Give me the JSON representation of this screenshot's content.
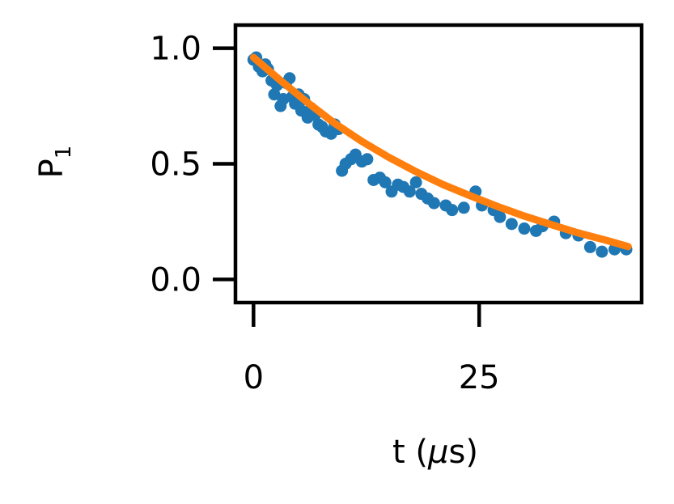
{
  "chart_data": {
    "type": "scatter",
    "xlabel_prefix": "t (",
    "xlabel_mu": "μ",
    "xlabel_suffix": "s)",
    "ylabel_main": "P",
    "ylabel_sub": "1",
    "xlim": [
      -2,
      43
    ],
    "ylim": [
      -0.1,
      1.1
    ],
    "xticks": [
      0,
      25
    ],
    "xtick_labels": [
      "0",
      "25"
    ],
    "yticks": [
      0.0,
      0.5,
      1.0
    ],
    "ytick_labels": [
      "0.0",
      "0.5",
      "1.0"
    ],
    "grid": false,
    "colors": {
      "data": "#1f77b4",
      "fit": "#ff7f0e"
    },
    "series": [
      {
        "kind": "points",
        "x": [
          0.0,
          0.3,
          0.6,
          1.0,
          1.3,
          1.6,
          2.0,
          2.3,
          2.6,
          3.0,
          3.3,
          3.6,
          4.0,
          4.3,
          4.6,
          5.0,
          5.3,
          5.6,
          6.0,
          6.4,
          6.8,
          7.2,
          7.6,
          8.0,
          8.6,
          9.0,
          9.4,
          9.8,
          10.2,
          10.8,
          11.3,
          12.0,
          12.6,
          13.3,
          14.0,
          14.6,
          15.3,
          16.0,
          16.6,
          17.3,
          18.0,
          18.6,
          19.3,
          20.0,
          21.3,
          22.0,
          23.3,
          24.6,
          25.3,
          26.6,
          27.3,
          28.6,
          30.0,
          31.3,
          32.0,
          33.3,
          34.6,
          36.0,
          37.3,
          38.6,
          40.0,
          41.3
        ],
        "y": [
          0.95,
          0.96,
          0.92,
          0.9,
          0.93,
          0.91,
          0.86,
          0.8,
          0.84,
          0.75,
          0.78,
          0.85,
          0.87,
          0.79,
          0.76,
          0.8,
          0.73,
          0.78,
          0.7,
          0.74,
          0.71,
          0.67,
          0.66,
          0.64,
          0.63,
          0.67,
          0.65,
          0.47,
          0.5,
          0.52,
          0.54,
          0.51,
          0.52,
          0.43,
          0.44,
          0.42,
          0.38,
          0.41,
          0.4,
          0.38,
          0.42,
          0.37,
          0.35,
          0.33,
          0.32,
          0.3,
          0.31,
          0.38,
          0.32,
          0.3,
          0.27,
          0.24,
          0.22,
          0.21,
          0.23,
          0.25,
          0.2,
          0.19,
          0.14,
          0.12,
          0.13,
          0.13
        ]
      },
      {
        "kind": "line",
        "model": "exponential decay",
        "x": [
          0.0,
          3.0,
          6.0,
          9.0,
          12.0,
          15.0,
          18.0,
          21.0,
          24.0,
          27.0,
          30.0,
          33.0,
          36.0,
          39.0,
          41.5
        ],
        "y": [
          0.96,
          0.86,
          0.765,
          0.675,
          0.597,
          0.528,
          0.466,
          0.41,
          0.362,
          0.316,
          0.274,
          0.237,
          0.201,
          0.17,
          0.142
        ]
      }
    ]
  }
}
